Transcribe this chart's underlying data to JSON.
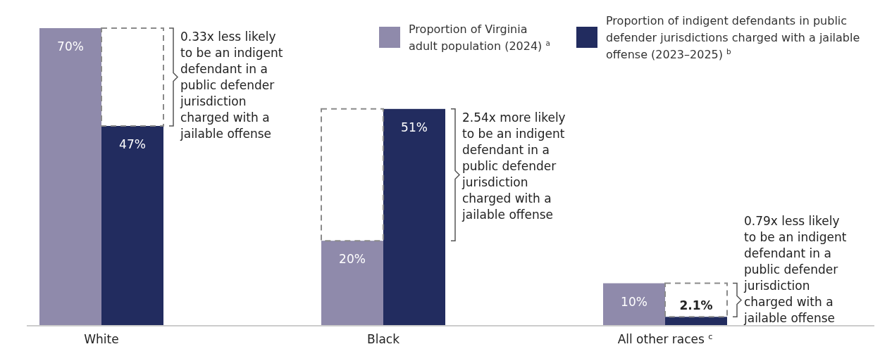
{
  "chart_data": {
    "type": "bar",
    "categories": [
      "White",
      "Black",
      "All other races $^{c}$"
    ],
    "series": [
      {
        "name": "Proportion of Virginia adult population (2024) $^{a}$",
        "color": "#8f8aab",
        "values": [
          70,
          20,
          10
        ],
        "value_labels": [
          "70%",
          "20%",
          "10%"
        ]
      },
      {
        "name": "Proportion of indigent defendants in public defender jurisdictions charged with a jailable offense (2023–2025) $^{b}$",
        "color": "#222c5f",
        "values": [
          47,
          51,
          2.1
        ],
        "value_labels": [
          "47%",
          "51%",
          "2.1%"
        ]
      }
    ],
    "annotations": [
      "0.33x less likely to be an indigent defendant in a public defender jurisdiction charged with a jailable offense",
      "2.54x more likely to be an indigent defendant in a public defender jurisdiction charged with a jailable offense",
      "0.79x less likely to be an indigent defendant in a public defender jurisdiction charged with a jailable offense"
    ],
    "legend": "top right"
  }
}
